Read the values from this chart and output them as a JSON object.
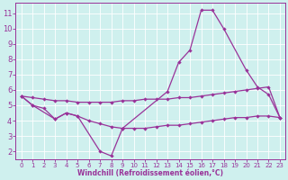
{
  "bg_color": "#cff0ee",
  "line_color": "#993399",
  "xlabel": "Windchill (Refroidissement éolien,°C)",
  "x_peak": [
    0,
    1,
    3,
    4,
    5,
    7,
    8,
    9,
    13,
    14,
    15,
    16,
    17,
    18,
    20,
    21,
    22,
    23
  ],
  "y_peak": [
    5.6,
    5.0,
    4.1,
    4.5,
    4.3,
    2.0,
    1.7,
    3.5,
    5.9,
    7.8,
    8.6,
    11.2,
    11.2,
    10.0,
    7.3,
    6.2,
    5.7,
    4.2
  ],
  "x_hi": [
    0,
    1,
    2,
    3,
    4,
    5,
    6,
    7,
    8,
    9,
    10,
    11,
    12,
    13,
    14,
    15,
    16,
    17,
    18,
    19,
    20,
    21,
    22,
    23
  ],
  "y_hi": [
    5.6,
    5.5,
    5.4,
    5.3,
    5.3,
    5.2,
    5.2,
    5.2,
    5.2,
    5.3,
    5.3,
    5.4,
    5.4,
    5.4,
    5.5,
    5.5,
    5.6,
    5.7,
    5.8,
    5.9,
    6.0,
    6.1,
    6.2,
    4.2
  ],
  "x_lo": [
    0,
    1,
    2,
    3,
    4,
    5,
    6,
    7,
    8,
    9,
    10,
    11,
    12,
    13,
    14,
    15,
    16,
    17,
    18,
    19,
    20,
    21,
    22,
    23
  ],
  "y_lo": [
    5.6,
    5.0,
    4.8,
    4.1,
    4.5,
    4.3,
    4.0,
    3.8,
    3.6,
    3.5,
    3.5,
    3.5,
    3.6,
    3.7,
    3.7,
    3.8,
    3.9,
    4.0,
    4.1,
    4.2,
    4.2,
    4.3,
    4.3,
    4.2
  ],
  "ylim": [
    1.5,
    11.7
  ],
  "xlim": [
    -0.5,
    23.5
  ],
  "yticks": [
    2,
    3,
    4,
    5,
    6,
    7,
    8,
    9,
    10,
    11
  ],
  "xticks": [
    0,
    1,
    2,
    3,
    4,
    5,
    6,
    7,
    8,
    9,
    10,
    11,
    12,
    13,
    14,
    15,
    16,
    17,
    18,
    19,
    20,
    21,
    22,
    23
  ]
}
